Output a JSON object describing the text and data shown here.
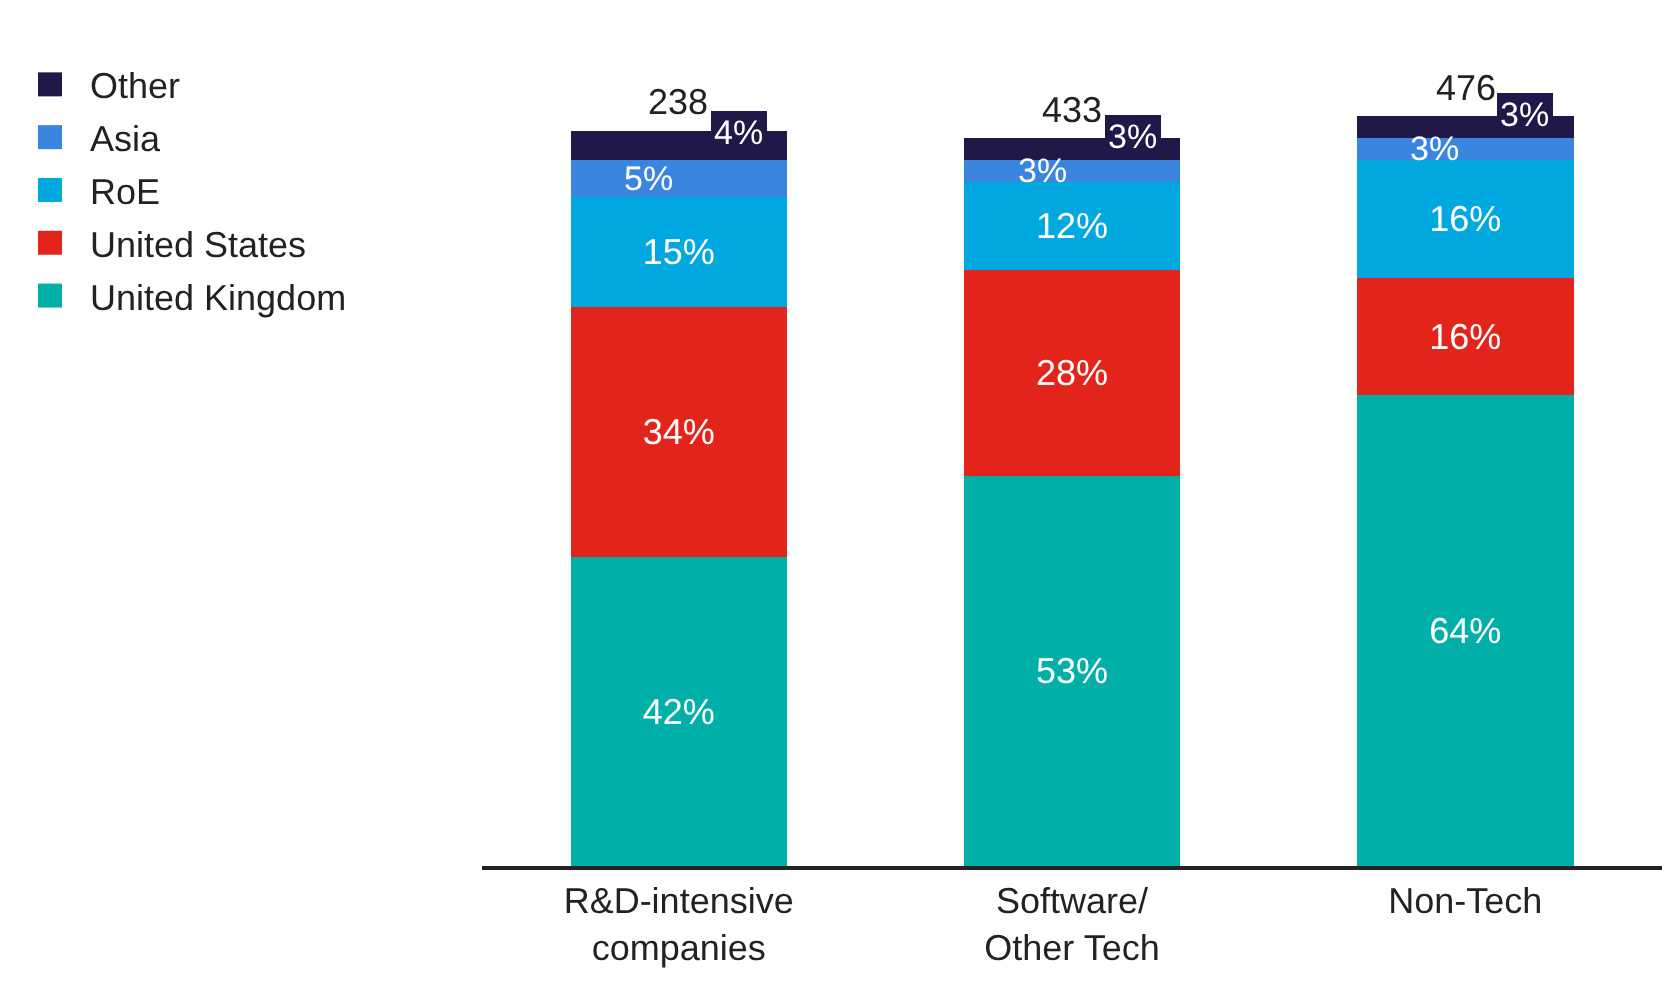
{
  "chart_data": {
    "type": "bar",
    "stacked": true,
    "categories": [
      "R&D-intensive\ncompanies",
      "Software/\nOther Tech",
      "Non-Tech"
    ],
    "series": [
      {
        "name": "United Kingdom",
        "color": "#00b0a8",
        "values": [
          42,
          53,
          64
        ],
        "value_labels": [
          "42%",
          "53%",
          "64%"
        ]
      },
      {
        "name": "United States",
        "color": "#e3241b",
        "values": [
          34,
          28,
          16
        ],
        "value_labels": [
          "34%",
          "28%",
          "16%"
        ]
      },
      {
        "name": "RoE",
        "color": "#00a8e0",
        "values": [
          15,
          12,
          16
        ],
        "value_labels": [
          "15%",
          "12%",
          "16%"
        ]
      },
      {
        "name": "Asia",
        "color": "#3a85e0",
        "values": [
          5,
          3,
          3
        ],
        "value_labels": [
          "5%",
          "3%",
          "3%"
        ]
      },
      {
        "name": "Other",
        "color": "#201848",
        "values": [
          4,
          3,
          3
        ],
        "value_labels": [
          "4%",
          "3%",
          "3%"
        ]
      }
    ],
    "annotations": [
      {
        "text": "238",
        "x": "R&D-intensive\ncompanies",
        "y": 100
      },
      {
        "text": "433",
        "x": "Software/\nOther Tech",
        "y": 99
      },
      {
        "text": "476",
        "x": "Non-Tech",
        "y": 102
      }
    ],
    "legend": "top left",
    "tick_labels": "x",
    "grid": false
  }
}
